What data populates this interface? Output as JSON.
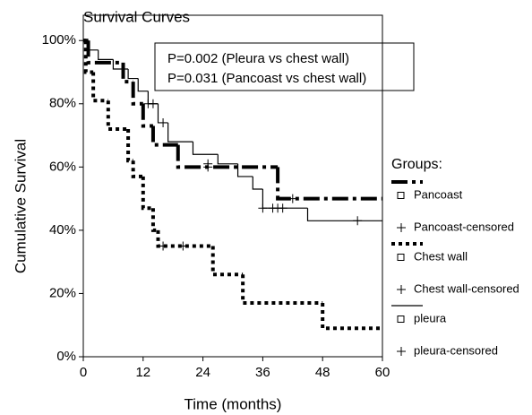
{
  "chart_data": {
    "type": "step",
    "title": "Survival Curves",
    "xlabel": "Time (months)",
    "ylabel": "Cumulative Survival",
    "xlim": [
      0,
      60
    ],
    "ylim": [
      0,
      108
    ],
    "xticks": [
      0,
      12,
      24,
      36,
      48,
      60
    ],
    "yticks": [
      {
        "value": 0,
        "label": "0%"
      },
      {
        "value": 20,
        "label": "20%"
      },
      {
        "value": 40,
        "label": "40%"
      },
      {
        "value": 60,
        "label": "60%"
      },
      {
        "value": 80,
        "label": "80%"
      },
      {
        "value": 100,
        "label": "100%"
      }
    ],
    "annotations": [
      "P=0.002 (Pleura vs chest wall)",
      "P=0.031 (Pancoast vs chest wall)"
    ],
    "legend_title": "Groups:",
    "series": [
      {
        "name": "Pancoast",
        "color": "#000000",
        "marker": "line",
        "dash": "18,5,4,5",
        "width": 4,
        "x": [
          0,
          1,
          8,
          10,
          12,
          14,
          19,
          39,
          60
        ],
        "values": [
          100,
          93,
          87,
          80,
          73,
          67,
          60,
          50,
          50
        ]
      },
      {
        "name": "Pancoast-censored",
        "color": "#000000",
        "marker": "plus",
        "x": [
          25,
          42
        ],
        "values": [
          60,
          50
        ]
      },
      {
        "name": "Chest wall",
        "color": "#000000",
        "marker": "line",
        "dash": "4,4",
        "width": 4,
        "x": [
          0,
          0.5,
          2,
          5,
          9,
          10,
          12,
          14,
          15,
          26,
          32,
          48,
          60
        ],
        "values": [
          100,
          90,
          81,
          72,
          62,
          57,
          47,
          40,
          35,
          26,
          17,
          9,
          9
        ]
      },
      {
        "name": "Chest wall-censored",
        "color": "#000000",
        "marker": "plus",
        "x": [
          16,
          20
        ],
        "values": [
          35,
          35
        ]
      },
      {
        "name": "pleura",
        "color": "#000000",
        "marker": "line",
        "dash": "none",
        "width": 1.2,
        "x": [
          0,
          1,
          3,
          6,
          9,
          11,
          13,
          15,
          17,
          22,
          27,
          31,
          34,
          36,
          45,
          60
        ],
        "values": [
          100,
          97,
          94,
          91,
          88,
          84,
          80,
          74,
          68,
          64,
          61,
          57,
          53,
          47,
          43,
          43
        ]
      },
      {
        "name": "pleura-censored",
        "color": "#000000",
        "marker": "plus",
        "x": [
          13,
          14,
          16,
          25,
          36,
          38,
          39,
          40,
          55
        ],
        "values": [
          80,
          80,
          74,
          61,
          47,
          47,
          47,
          47,
          43
        ]
      }
    ]
  }
}
